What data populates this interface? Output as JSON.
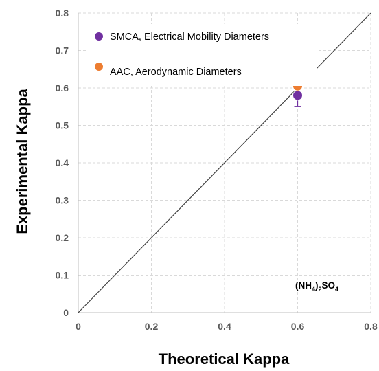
{
  "chart_data": {
    "type": "scatter",
    "title": "",
    "xlabel": "Theoretical Kappa",
    "ylabel": "Experimental Kappa",
    "xlim": [
      0,
      0.8
    ],
    "ylim": [
      0,
      0.8
    ],
    "x_ticks": [
      "0",
      "0.2",
      "0.4",
      "0.6",
      "0.8"
    ],
    "y_ticks": [
      "0",
      "0.1",
      "0.2",
      "0.3",
      "0.4",
      "0.5",
      "0.6",
      "0.7",
      "0.8"
    ],
    "grid": true,
    "grid_style": "dashed",
    "legend_position": "top-left",
    "one_to_one_line": {
      "x": [
        0,
        0.8
      ],
      "y": [
        0,
        0.8
      ],
      "color": "#404040"
    },
    "series": [
      {
        "name": "SMCA, Electrical Mobility Diameters",
        "color": "#7030a0",
        "points": [
          {
            "x": 0.6,
            "y": 0.58,
            "err_plus": 0,
            "err_minus": 0.03
          }
        ]
      },
      {
        "name": "AAC, Aerodynamic Diameters",
        "color": "#ed7d31",
        "points": [
          {
            "x": 0.6,
            "y": 0.605,
            "err_plus": 0.06,
            "err_minus": 0
          }
        ]
      }
    ],
    "annotation": {
      "prefix": "(NH",
      "sub1": "4",
      "mid": ")",
      "sub2": "2",
      "tail": "SO",
      "sub3": "4"
    }
  }
}
